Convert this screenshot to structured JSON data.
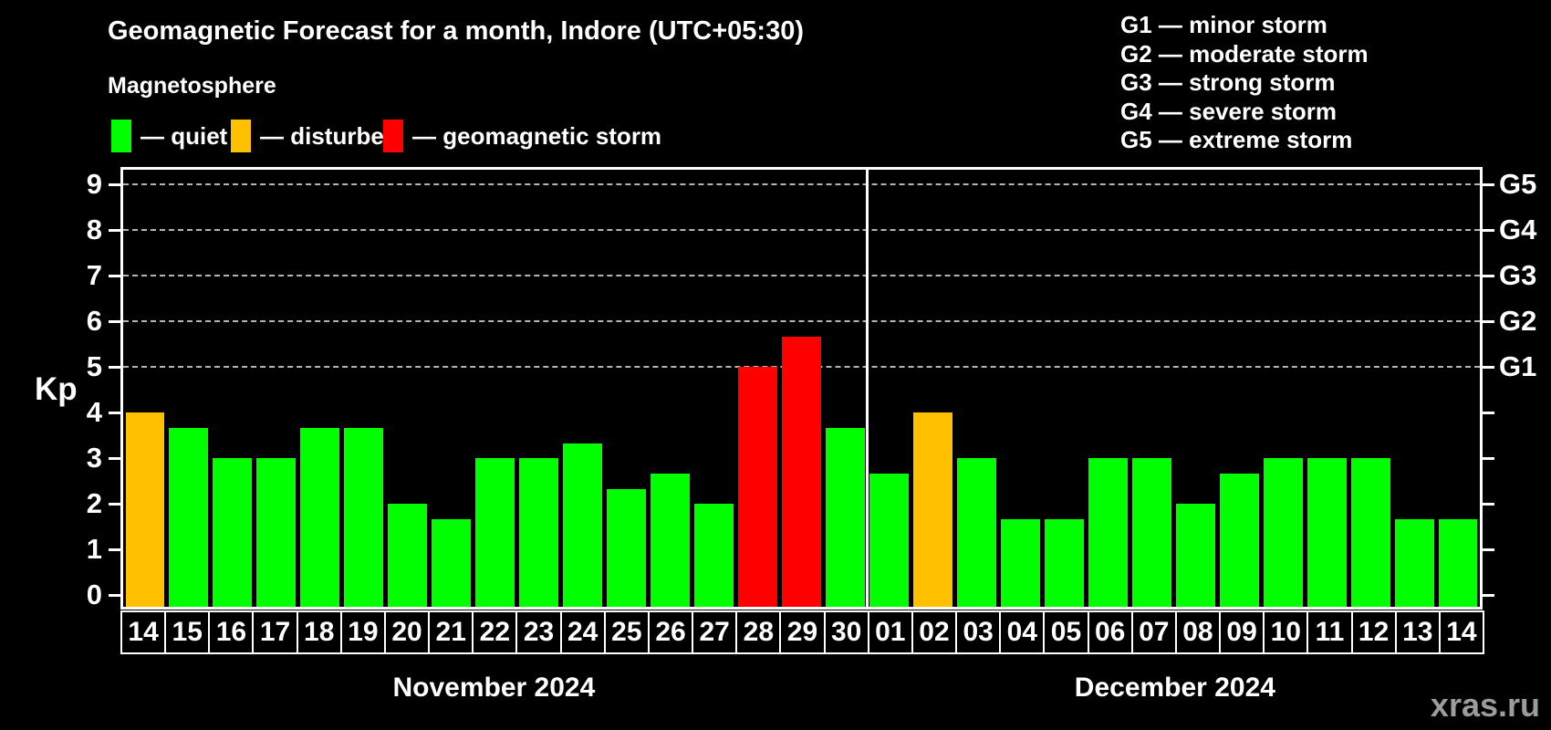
{
  "title": "Geomagnetic Forecast for a month, Indore (UTC+05:30)",
  "subtitle": "Magnetosphere",
  "legend": {
    "items": [
      {
        "key": "quiet",
        "label": "— quiet",
        "color": "#00ff00"
      },
      {
        "key": "disturbed",
        "label": "— disturbed",
        "color": "#ffc000"
      },
      {
        "key": "storm",
        "label": "— geomagnetic storm",
        "color": "#ff0000"
      }
    ]
  },
  "g_scale": {
    "items": [
      "G1 — minor storm",
      "G2 — moderate storm",
      "G3 — strong storm",
      "G4 — severe storm",
      "G5 — extreme storm"
    ]
  },
  "watermark": "xras.ru",
  "chart_data": {
    "type": "bar",
    "ylabel": "Kp",
    "ylim": [
      0,
      9
    ],
    "y_ticks": [
      0,
      1,
      2,
      3,
      4,
      5,
      6,
      7,
      8,
      9
    ],
    "grid": "dashed horizontal lines at Kp 5..9",
    "legend_position": "top-left",
    "state_colors": {
      "quiet": "#00ff00",
      "disturbed": "#ffc000",
      "storm": "#ff0000"
    },
    "g_axis": [
      {
        "kp": 5,
        "label": "G1"
      },
      {
        "kp": 6,
        "label": "G2"
      },
      {
        "kp": 7,
        "label": "G3"
      },
      {
        "kp": 8,
        "label": "G4"
      },
      {
        "kp": 9,
        "label": "G5"
      }
    ],
    "months": [
      {
        "label": "November 2024",
        "days": 17
      },
      {
        "label": "December 2024",
        "days": 14
      }
    ],
    "categories": [
      "14",
      "15",
      "16",
      "17",
      "18",
      "19",
      "20",
      "21",
      "22",
      "23",
      "24",
      "25",
      "26",
      "27",
      "28",
      "29",
      "30",
      "01",
      "02",
      "03",
      "04",
      "05",
      "06",
      "07",
      "08",
      "09",
      "10",
      "11",
      "12",
      "13",
      "14"
    ],
    "bars": [
      {
        "day": "14",
        "month": "November 2024",
        "kp": 4.0,
        "state": "disturbed"
      },
      {
        "day": "15",
        "month": "November 2024",
        "kp": 3.67,
        "state": "quiet"
      },
      {
        "day": "16",
        "month": "November 2024",
        "kp": 3.0,
        "state": "quiet"
      },
      {
        "day": "17",
        "month": "November 2024",
        "kp": 3.0,
        "state": "quiet"
      },
      {
        "day": "18",
        "month": "November 2024",
        "kp": 3.67,
        "state": "quiet"
      },
      {
        "day": "19",
        "month": "November 2024",
        "kp": 3.67,
        "state": "quiet"
      },
      {
        "day": "20",
        "month": "November 2024",
        "kp": 2.0,
        "state": "quiet"
      },
      {
        "day": "21",
        "month": "November 2024",
        "kp": 1.67,
        "state": "quiet"
      },
      {
        "day": "22",
        "month": "November 2024",
        "kp": 3.0,
        "state": "quiet"
      },
      {
        "day": "23",
        "month": "November 2024",
        "kp": 3.0,
        "state": "quiet"
      },
      {
        "day": "24",
        "month": "November 2024",
        "kp": 3.33,
        "state": "quiet"
      },
      {
        "day": "25",
        "month": "November 2024",
        "kp": 2.33,
        "state": "quiet"
      },
      {
        "day": "26",
        "month": "November 2024",
        "kp": 2.67,
        "state": "quiet"
      },
      {
        "day": "27",
        "month": "November 2024",
        "kp": 2.0,
        "state": "quiet"
      },
      {
        "day": "28",
        "month": "November 2024",
        "kp": 5.0,
        "state": "storm"
      },
      {
        "day": "29",
        "month": "November 2024",
        "kp": 5.67,
        "state": "storm"
      },
      {
        "day": "30",
        "month": "November 2024",
        "kp": 3.67,
        "state": "quiet"
      },
      {
        "day": "01",
        "month": "December 2024",
        "kp": 2.67,
        "state": "quiet"
      },
      {
        "day": "02",
        "month": "December 2024",
        "kp": 4.0,
        "state": "disturbed"
      },
      {
        "day": "03",
        "month": "December 2024",
        "kp": 3.0,
        "state": "quiet"
      },
      {
        "day": "04",
        "month": "December 2024",
        "kp": 1.67,
        "state": "quiet"
      },
      {
        "day": "05",
        "month": "December 2024",
        "kp": 1.67,
        "state": "quiet"
      },
      {
        "day": "06",
        "month": "December 2024",
        "kp": 3.0,
        "state": "quiet"
      },
      {
        "day": "07",
        "month": "December 2024",
        "kp": 3.0,
        "state": "quiet"
      },
      {
        "day": "08",
        "month": "December 2024",
        "kp": 2.0,
        "state": "quiet"
      },
      {
        "day": "09",
        "month": "December 2024",
        "kp": 2.67,
        "state": "quiet"
      },
      {
        "day": "10",
        "month": "December 2024",
        "kp": 3.0,
        "state": "quiet"
      },
      {
        "day": "11",
        "month": "December 2024",
        "kp": 3.0,
        "state": "quiet"
      },
      {
        "day": "12",
        "month": "December 2024",
        "kp": 3.0,
        "state": "quiet"
      },
      {
        "day": "13",
        "month": "December 2024",
        "kp": 1.67,
        "state": "quiet"
      },
      {
        "day": "14",
        "month": "December 2024",
        "kp": 1.67,
        "state": "quiet"
      }
    ]
  }
}
